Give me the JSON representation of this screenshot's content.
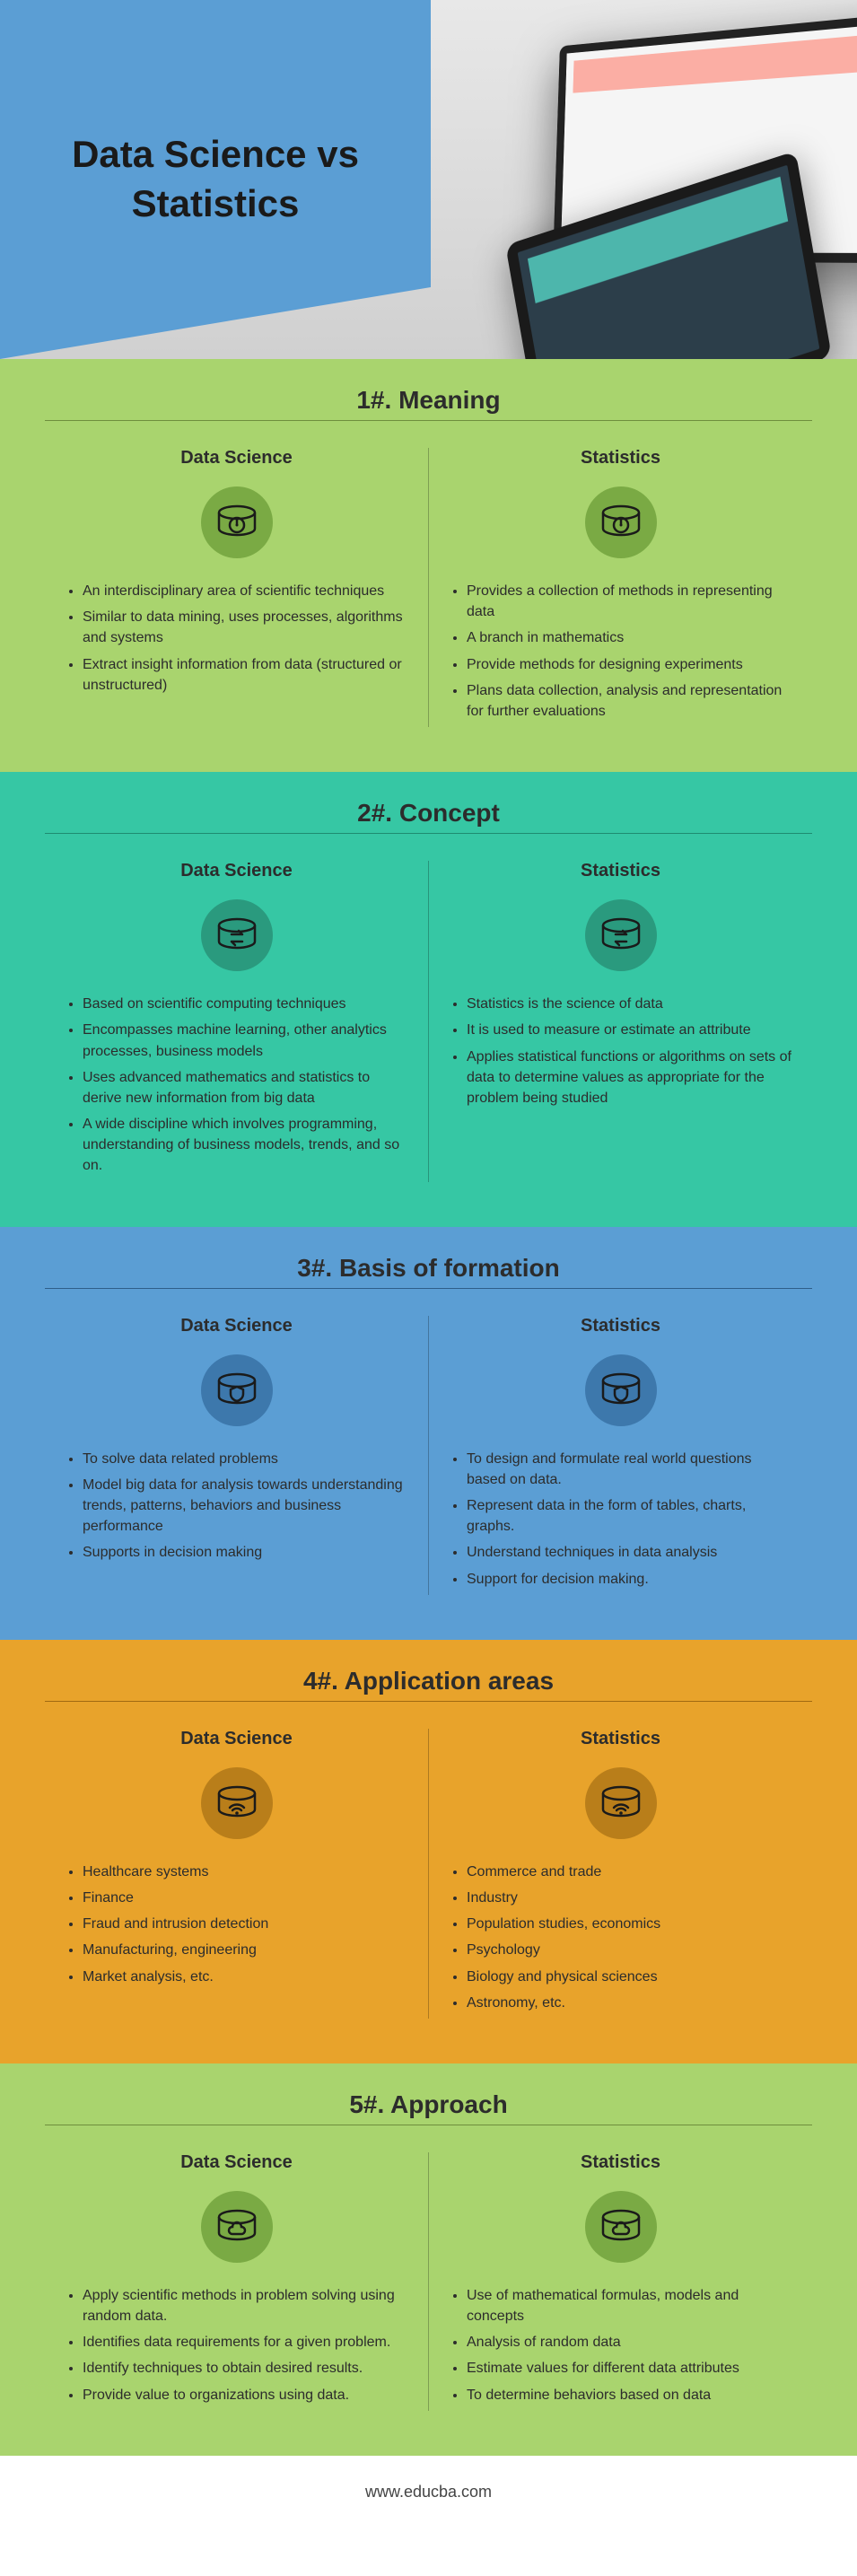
{
  "hero": {
    "title": "Data Science vs Statistics",
    "blue": "#5b9ed4"
  },
  "columns": {
    "left": "Data Science",
    "right": "Statistics"
  },
  "sections": [
    {
      "title": "1#. Meaning",
      "bg": "#a9d46e",
      "titleUnderline": "#6e8e3d",
      "iconBg": "#7aaa44",
      "iconStroke": "#1a1a1a",
      "icon": "disk-gauge",
      "left": [
        "An interdisciplinary area of scientific techniques",
        "Similar to data mining, uses processes, algorithms and systems",
        "Extract insight information from data (structured or unstructured)"
      ],
      "right": [
        "Provides a collection of methods in representing data",
        "A branch in mathematics",
        "Provide methods for designing experiments",
        "Plans data collection, analysis and representation for further evaluations"
      ]
    },
    {
      "title": "2#. Concept",
      "bg": "#36c7a4",
      "titleUnderline": "#1e8b70",
      "iconBg": "#2a9a7e",
      "iconStroke": "#1a1a1a",
      "icon": "disk-arrows",
      "left": [
        "Based on scientific computing techniques",
        "Encompasses machine learning, other analytics processes, business models",
        "Uses advanced mathematics and statistics to derive new information from big data",
        "A wide discipline which involves programming, understanding of business models, trends, and so on."
      ],
      "right": [
        "Statistics is the science of data",
        "It is used to measure or estimate an attribute",
        "Applies statistical functions or algorithms on sets of data to determine values as appropriate for the problem being studied"
      ]
    },
    {
      "title": "3#. Basis of formation",
      "bg": "#5b9ed4",
      "titleUnderline": "#2e5e89",
      "iconBg": "#3d78ac",
      "iconStroke": "#1a1a1a",
      "icon": "disk-shield",
      "left": [
        "To solve data related problems",
        "Model big data for analysis towards understanding trends, patterns, behaviors and business performance",
        "Supports in decision making"
      ],
      "right": [
        "To design and formulate real world questions based on data.",
        "Represent data in the form of tables, charts, graphs.",
        "Understand techniques in data analysis",
        "Support for decision making."
      ]
    },
    {
      "title": "4#. Application areas",
      "bg": "#e8a32b",
      "titleUnderline": "#a06a12",
      "iconBg": "#b97e1a",
      "iconStroke": "#1a1a1a",
      "icon": "disk-wifi",
      "left": [
        "Healthcare systems",
        "Finance",
        "Fraud and intrusion detection",
        "Manufacturing, engineering",
        "Market analysis, etc."
      ],
      "right": [
        "Commerce and trade",
        "Industry",
        "Population studies, economics",
        "Psychology",
        "Biology and physical sciences",
        "Astronomy, etc."
      ]
    },
    {
      "title": "5#. Approach",
      "bg": "#a9d46e",
      "titleUnderline": "#6e8e3d",
      "iconBg": "#7aaa44",
      "iconStroke": "#1a1a1a",
      "icon": "disk-cloud",
      "left": [
        "Apply scientific methods in problem solving using random data.",
        "Identifies data requirements for a given problem.",
        "Identify techniques to obtain desired results.",
        "Provide value to organizations using data."
      ],
      "right": [
        "Use of mathematical formulas, models and  concepts",
        "Analysis of random data",
        "Estimate values for different data attributes",
        "To determine behaviors based on data"
      ]
    }
  ],
  "footer": "www.educba.com"
}
